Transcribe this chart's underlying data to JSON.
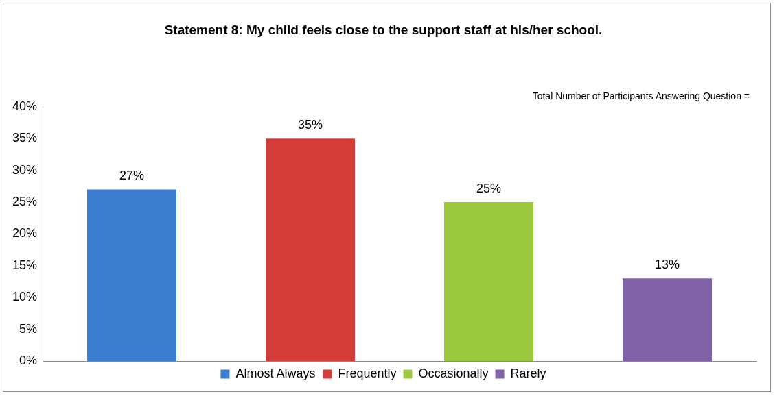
{
  "chart_data": {
    "type": "bar",
    "title": "Statement 8: My child feels close to the support staff at his/her school.",
    "categories": [
      null,
      null,
      null,
      null
    ],
    "series": [
      {
        "name": "Almost Always",
        "color": "#3c7dd0",
        "values": [
          27,
          null,
          null,
          null
        ],
        "value_labels": [
          "27%",
          null,
          null,
          null
        ]
      },
      {
        "name": "Frequently",
        "color": "#d23d3a",
        "values": [
          null,
          35,
          null,
          null
        ],
        "value_labels": [
          null,
          "35%",
          null,
          null
        ]
      },
      {
        "name": "Occasionally",
        "color": "#9cc83e",
        "values": [
          null,
          null,
          25,
          null
        ],
        "value_labels": [
          null,
          null,
          "25%",
          null
        ]
      },
      {
        "name": "Rarely",
        "color": "#8062a8",
        "values": [
          null,
          null,
          null,
          13
        ],
        "value_labels": [
          null,
          null,
          null,
          "13%"
        ]
      }
    ],
    "ylim": [
      0,
      40
    ],
    "yticks": [
      {
        "value": 0,
        "label": "0%"
      },
      {
        "value": 5,
        "label": "5%"
      },
      {
        "value": 10,
        "label": "10%"
      },
      {
        "value": 15,
        "label": "15%"
      },
      {
        "value": 20,
        "label": "20%"
      },
      {
        "value": 25,
        "label": "25%"
      },
      {
        "value": 30,
        "label": "30%"
      },
      {
        "value": 35,
        "label": "35%"
      },
      {
        "value": 40,
        "label": "40%"
      }
    ],
    "annotations": [
      "Total Number of Participants Answering Question ="
    ],
    "legend": "bottom",
    "grid": false
  }
}
